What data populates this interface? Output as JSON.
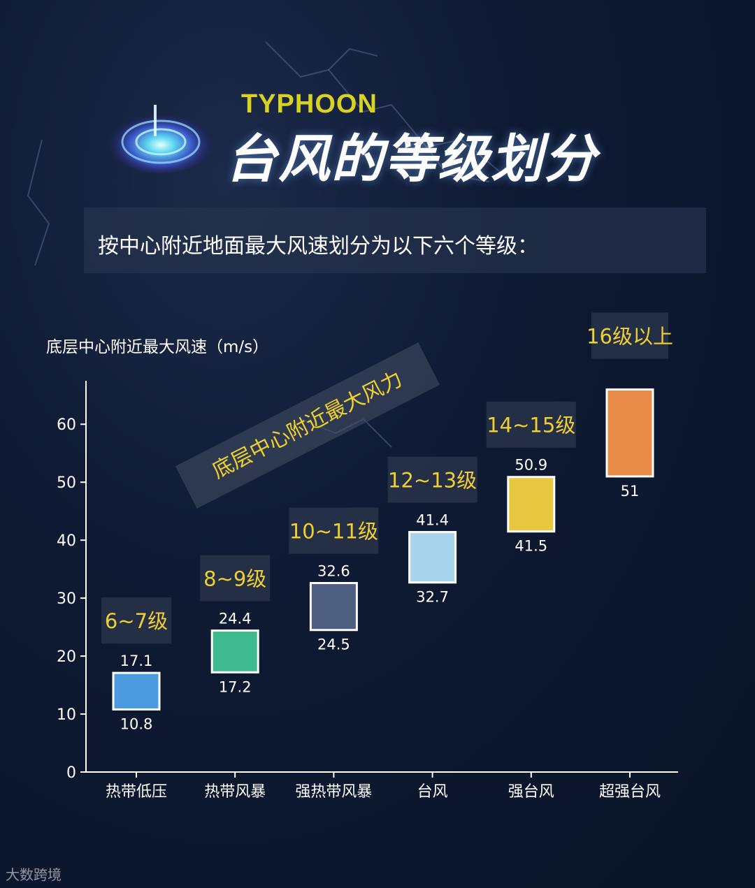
{
  "header": {
    "title_en": "TYPHOON",
    "title_cn": "台风的等级划分",
    "subtitle": "按中心附近地面最大风速划分为以下六个等级："
  },
  "watermark": "大数跨境",
  "annotation": "底层中心附近最大风力",
  "colors": {
    "background": "#0e1a33",
    "label_yellow": "#f0d030",
    "tag_bg": "#28344a"
  },
  "chart_data": {
    "type": "floating-bar",
    "ylabel": "底层中心附近最大风速（m/s）",
    "ylim": [
      0,
      66
    ],
    "yticks": [
      0,
      10,
      20,
      30,
      40,
      50,
      60
    ],
    "categories": [
      "热带低压",
      "热带风暴",
      "强热带风暴",
      "台风",
      "强台风",
      "超强台风"
    ],
    "series": [
      {
        "low": 10.8,
        "high": 17.1,
        "low_label": "10.8",
        "high_label": "17.1",
        "grade": "6~7级",
        "color": "#4a9be0"
      },
      {
        "low": 17.2,
        "high": 24.4,
        "low_label": "17.2",
        "high_label": "24.4",
        "grade": "8~9级",
        "color": "#3fba90"
      },
      {
        "low": 24.5,
        "high": 32.6,
        "low_label": "24.5",
        "high_label": "32.6",
        "grade": "10~11级",
        "color": "#4f5f82"
      },
      {
        "low": 32.7,
        "high": 41.4,
        "low_label": "32.7",
        "high_label": "41.4",
        "grade": "12~13级",
        "color": "#a8d4ec"
      },
      {
        "low": 41.5,
        "high": 50.9,
        "low_label": "41.5",
        "high_label": "50.9",
        "grade": "14~15级",
        "color": "#e8c840"
      },
      {
        "low": 51,
        "high": 66,
        "low_label": "51",
        "high_label": "",
        "grade": "16级以上",
        "color": "#e88a48"
      }
    ]
  }
}
